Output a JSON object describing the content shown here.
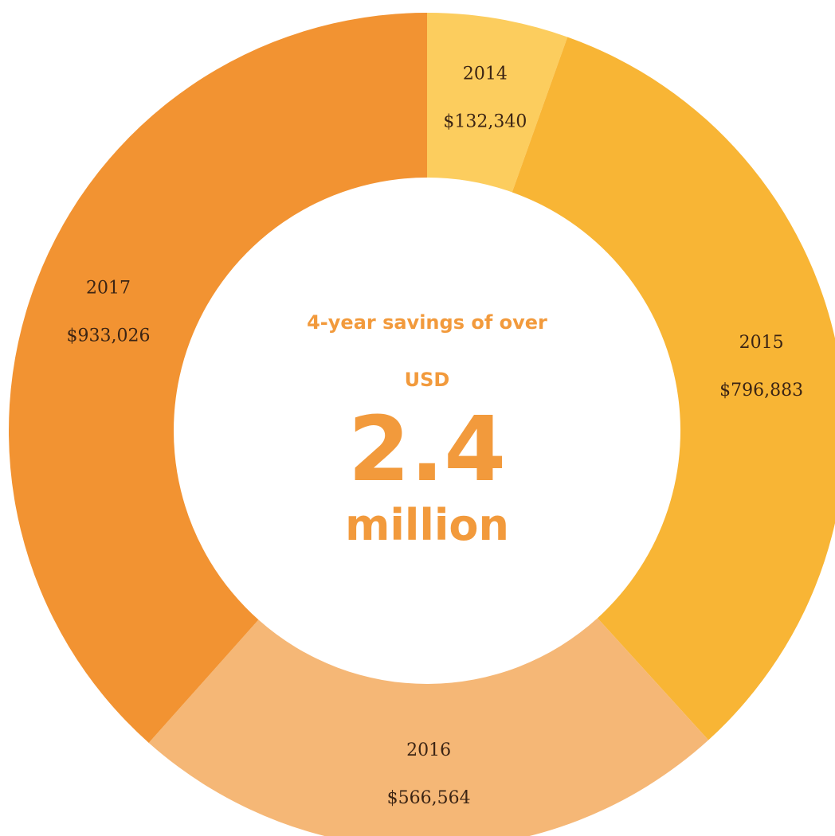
{
  "chart_data": {
    "type": "pie",
    "style": "donut",
    "slices": [
      {
        "label": "2014",
        "value": 132340,
        "value_label": "$132,340",
        "color": "#FCCD5E"
      },
      {
        "label": "2015",
        "value": 796883,
        "value_label": "$796,883",
        "color": "#F8B535"
      },
      {
        "label": "2016",
        "value": 566564,
        "value_label": "$566,564",
        "color": "#F5B776"
      },
      {
        "label": "2017",
        "value": 933026,
        "value_label": "$933,026",
        "color": "#F29332"
      }
    ],
    "center": {
      "line1": "4-year savings of over",
      "line2": "USD",
      "line3": "2.4",
      "line4": "million",
      "color": "#F29A3C"
    }
  }
}
